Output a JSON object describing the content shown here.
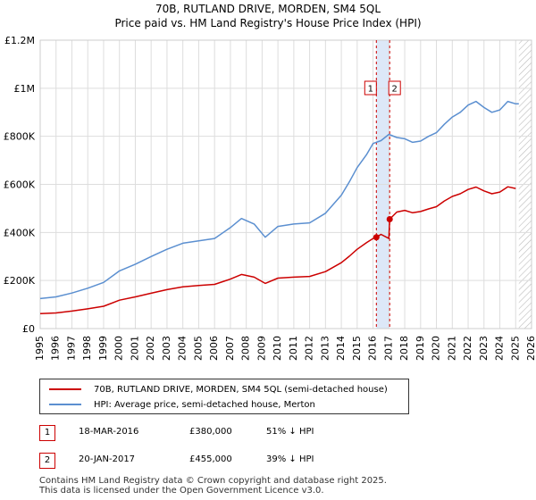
{
  "title": {
    "line1": "70B, RUTLAND DRIVE, MORDEN, SM4 5QL",
    "line2": "Price paid vs. HM Land Registry's House Price Index (HPI)"
  },
  "legend": {
    "red_label": "70B, RUTLAND DRIVE, MORDEN, SM4 5QL (semi-detached house)",
    "blue_label": "HPI: Average price, semi-detached house, Merton"
  },
  "transactions": [
    {
      "num": "1",
      "date": "18-MAR-2016",
      "price": "£380,000",
      "pct": "51% ↓ HPI"
    },
    {
      "num": "2",
      "date": "20-JAN-2017",
      "price": "£455,000",
      "pct": "39% ↓ HPI"
    }
  ],
  "footer": {
    "line1": "Contains HM Land Registry data © Crown copyright and database right 2025.",
    "line2": "This data is licensed under the Open Government Licence v3.0."
  },
  "colors": {
    "red": "#cc0000",
    "blue": "#5b8fd0",
    "grid": "#dddddd",
    "shade": "#dde8f8"
  },
  "chart_data": {
    "type": "line",
    "xlim": [
      1995,
      2026
    ],
    "ylim": [
      0,
      1200000
    ],
    "y_ticks": [
      {
        "value": 0,
        "label": "£0"
      },
      {
        "value": 200000,
        "label": "£200K"
      },
      {
        "value": 400000,
        "label": "£400K"
      },
      {
        "value": 600000,
        "label": "£600K"
      },
      {
        "value": 800000,
        "label": "£800K"
      },
      {
        "value": 1000000,
        "label": "£1M"
      },
      {
        "value": 1200000,
        "label": "£1.2M"
      }
    ],
    "x_ticks": [
      "1995",
      "1996",
      "1997",
      "1998",
      "1999",
      "2000",
      "2001",
      "2002",
      "2003",
      "2004",
      "2005",
      "2006",
      "2007",
      "2008",
      "2009",
      "2010",
      "2011",
      "2012",
      "2013",
      "2014",
      "2015",
      "2016",
      "2017",
      "2018",
      "2019",
      "2020",
      "2021",
      "2022",
      "2023",
      "2024",
      "2025",
      "2026"
    ],
    "grid": true,
    "shaded_period": [
      2016.21,
      2017.05
    ],
    "hatch_from": 2025.2,
    "series": [
      {
        "name": "HPI: Average price, semi-detached house, Merton",
        "color": "#5b8fd0",
        "x": [
          1995,
          1996,
          1997,
          1998,
          1999,
          2000,
          2001,
          2002,
          2003,
          2004,
          2005,
          2006,
          2007,
          2007.7,
          2008.5,
          2009.2,
          2010,
          2011,
          2012,
          2013,
          2014,
          2014.5,
          2015,
          2015.6,
          2016,
          2016.5,
          2017,
          2017.5,
          2018,
          2018.5,
          2019,
          2019.5,
          2020,
          2020.5,
          2021,
          2021.5,
          2022,
          2022.5,
          2023,
          2023.5,
          2024,
          2024.5,
          2025,
          2025.2
        ],
        "y": [
          125000,
          132000,
          148000,
          168000,
          192000,
          240000,
          268000,
          300000,
          330000,
          355000,
          365000,
          375000,
          420000,
          458000,
          435000,
          380000,
          425000,
          435000,
          440000,
          480000,
          555000,
          610000,
          670000,
          725000,
          770000,
          782000,
          808000,
          795000,
          790000,
          775000,
          780000,
          800000,
          815000,
          850000,
          880000,
          900000,
          930000,
          945000,
          920000,
          900000,
          910000,
          945000,
          935000,
          935000
        ]
      },
      {
        "name": "70B, RUTLAND DRIVE, MORDEN, SM4 5QL (semi-detached house)",
        "color": "#cc0000",
        "x": [
          1995,
          1996,
          1997,
          1998,
          1999,
          2000,
          2001,
          2002,
          2003,
          2004,
          2005,
          2006,
          2007,
          2007.7,
          2008.5,
          2009.2,
          2010,
          2011,
          2012,
          2013,
          2014,
          2014.5,
          2015,
          2015.6,
          2016,
          2016.21,
          2016.5,
          2017,
          2017.05,
          2017.5,
          2018,
          2018.5,
          2019,
          2019.5,
          2020,
          2020.5,
          2021,
          2021.5,
          2022,
          2022.5,
          2023,
          2023.5,
          2024,
          2024.5,
          2025
        ],
        "y": [
          62000,
          65000,
          73000,
          82000,
          93000,
          118000,
          132000,
          147000,
          162000,
          174000,
          179000,
          184000,
          206000,
          225000,
          214000,
          188000,
          210000,
          214000,
          217000,
          237000,
          274000,
          301000,
          330000,
          358000,
          375000,
          380000,
          392000,
          375000,
          455000,
          485000,
          492000,
          482000,
          487000,
          498000,
          507000,
          531000,
          550000,
          561000,
          579000,
          589000,
          573000,
          561000,
          568000,
          590000,
          583000
        ]
      }
    ],
    "transactions": [
      {
        "label": "1",
        "x": 2016.21,
        "y": 380000
      },
      {
        "label": "2",
        "x": 2017.05,
        "y": 455000
      }
    ]
  }
}
